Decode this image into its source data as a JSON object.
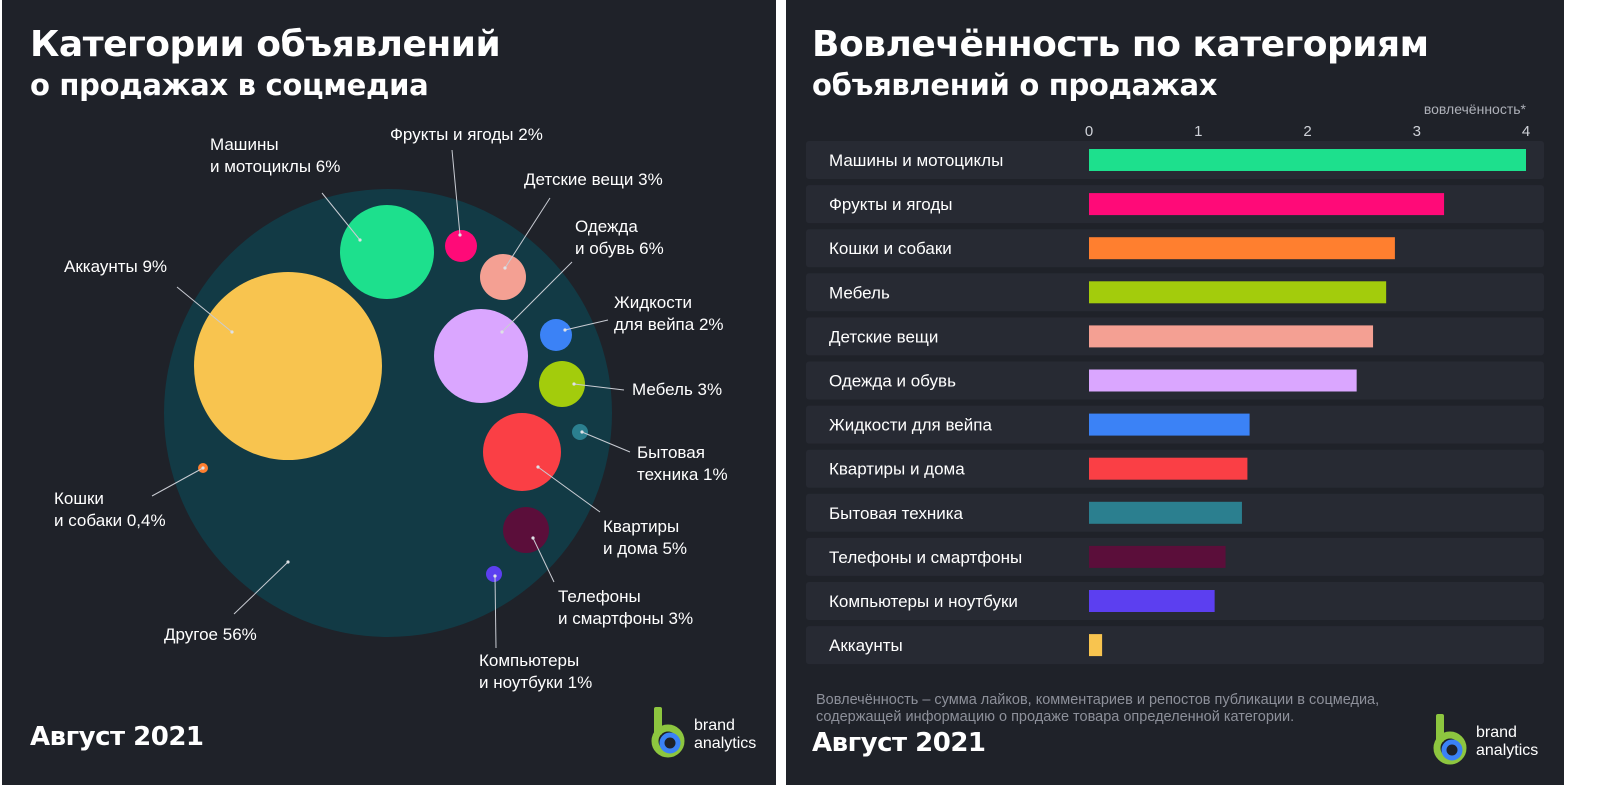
{
  "left": {
    "title_line1": "Категории объявлений",
    "title_line2": "о продажах в соцмедиа",
    "footer": "Август 2021"
  },
  "right": {
    "title_line1": "Вовлечённость по категориям",
    "title_line2": "объявлений о продажах",
    "footer": "Август 2021",
    "axis_label": "вовлечённость*",
    "footnote_line1": "Вовлечённость – сумма лайков, комментариев и репостов публикации в соцмедиа,",
    "footnote_line2": "содержащей информацию о продаже товара определенной категории."
  },
  "logo": {
    "line1": "brand",
    "line2": "analytics"
  },
  "colors": {
    "background": "#1f2229",
    "outer_bubble": "#123a45",
    "row_background": "#272a33",
    "accent": "#8dc63f"
  },
  "chart_data": [
    {
      "type": "bubble",
      "title": "",
      "unit": "%",
      "items": [
        {
          "name": "Другое",
          "label": [
            "Другое 56%"
          ],
          "value": 56,
          "color": "#123a45"
        },
        {
          "name": "Аккаунты",
          "label": [
            "Аккаунты 9%"
          ],
          "value": 9,
          "color": "#f8c44f"
        },
        {
          "name": "Машины и мотоциклы",
          "label": [
            "Машины",
            "и мотоциклы 6%"
          ],
          "value": 6,
          "color": "#1de08d"
        },
        {
          "name": "Фрукты и ягоды",
          "label": [
            "Фрукты и ягоды 2%"
          ],
          "value": 2,
          "color": "#ff0a78"
        },
        {
          "name": "Детские вещи",
          "label": [
            "Детские вещи 3%"
          ],
          "value": 3,
          "color": "#f4a093"
        },
        {
          "name": "Одежда и обувь",
          "label": [
            "Одежда",
            "и обувь 6%"
          ],
          "value": 6,
          "color": "#daa6ff"
        },
        {
          "name": "Жидкости для вейпа",
          "label": [
            "Жидкости",
            "для вейпа 2%"
          ],
          "value": 2,
          "color": "#3b82f6"
        },
        {
          "name": "Мебель",
          "label": [
            "Мебель 3%"
          ],
          "value": 3,
          "color": "#a3cc0c"
        },
        {
          "name": "Бытовая техника",
          "label": [
            "Бытовая",
            "техника 1%"
          ],
          "value": 1,
          "color": "#2b7f8f"
        },
        {
          "name": "Квартиры и дома",
          "label": [
            "Квартиры",
            "и дома 5%"
          ],
          "value": 5,
          "color": "#fa3f45"
        },
        {
          "name": "Телефоны и смартфоны",
          "label": [
            "Телефоны",
            "и смартфоны 3%"
          ],
          "value": 3,
          "color": "#5b0e3a"
        },
        {
          "name": "Компьютеры и ноутбуки",
          "label": [
            "Компьютеры",
            "и ноутбуки 1%"
          ],
          "value": 1,
          "color": "#5c3ff0"
        },
        {
          "name": "Кошки и собаки",
          "label": [
            "Кошки",
            "и собаки 0,4%"
          ],
          "value": 0.4,
          "color": "#ff7f2f"
        }
      ]
    },
    {
      "type": "bar",
      "orientation": "horizontal",
      "title": "",
      "xlabel": "вовлечённость*",
      "xlim": [
        0,
        4
      ],
      "ticks": [
        0,
        1,
        2,
        3,
        4
      ],
      "categories": [
        "Машины и мотоциклы",
        "Фрукты и ягоды",
        "Кошки и собаки",
        "Мебель",
        "Детские вещи",
        "Одежда и обувь",
        "Жидкости для вейпа",
        "Квартиры и дома",
        "Бытовая техника",
        "Телефоны и смартфоны",
        "Компьютеры и ноутбуки",
        "Аккаунты"
      ],
      "values": [
        4.0,
        3.25,
        2.8,
        2.72,
        2.6,
        2.45,
        1.47,
        1.45,
        1.4,
        1.25,
        1.15,
        0.12
      ],
      "colors": [
        "#1de08d",
        "#ff0a78",
        "#ff7f2f",
        "#a3cc0c",
        "#f4a093",
        "#daa6ff",
        "#3b82f6",
        "#fa3f45",
        "#2b7f8f",
        "#5b0e3a",
        "#5c3ff0",
        "#f8c44f"
      ]
    }
  ]
}
